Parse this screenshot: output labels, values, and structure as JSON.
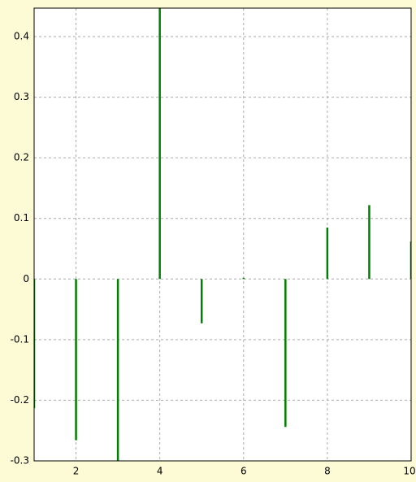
{
  "chart_data": {
    "type": "stem",
    "x": [
      1,
      2,
      3,
      4,
      5,
      6,
      7,
      8,
      9,
      10
    ],
    "values": [
      -0.213,
      -0.266,
      -0.3,
      0.447,
      -0.073,
      0.002,
      -0.244,
      0.085,
      0.122,
      0.062
    ],
    "color": "#008000",
    "xlim": [
      1,
      10
    ],
    "xticks": [
      2,
      4,
      6,
      8,
      10
    ],
    "ylim": [
      -0.3,
      0.447
    ],
    "yticks": [
      -0.3,
      -0.2,
      -0.1,
      0,
      0.1,
      0.2,
      0.3,
      0.4
    ],
    "grid": true
  }
}
